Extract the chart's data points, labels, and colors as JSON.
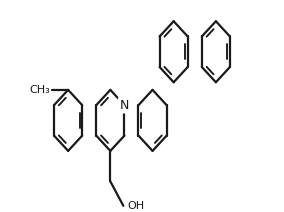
{
  "background": "#ffffff",
  "line_color": "#1a1a1a",
  "bond_lw": 1.6,
  "font_size_N": 9,
  "font_size_label": 8,
  "figsize": [
    2.84,
    2.12
  ],
  "dpi": 100,
  "atoms": {
    "N": "N",
    "OH": "OH",
    "CH3": "CH₃"
  }
}
